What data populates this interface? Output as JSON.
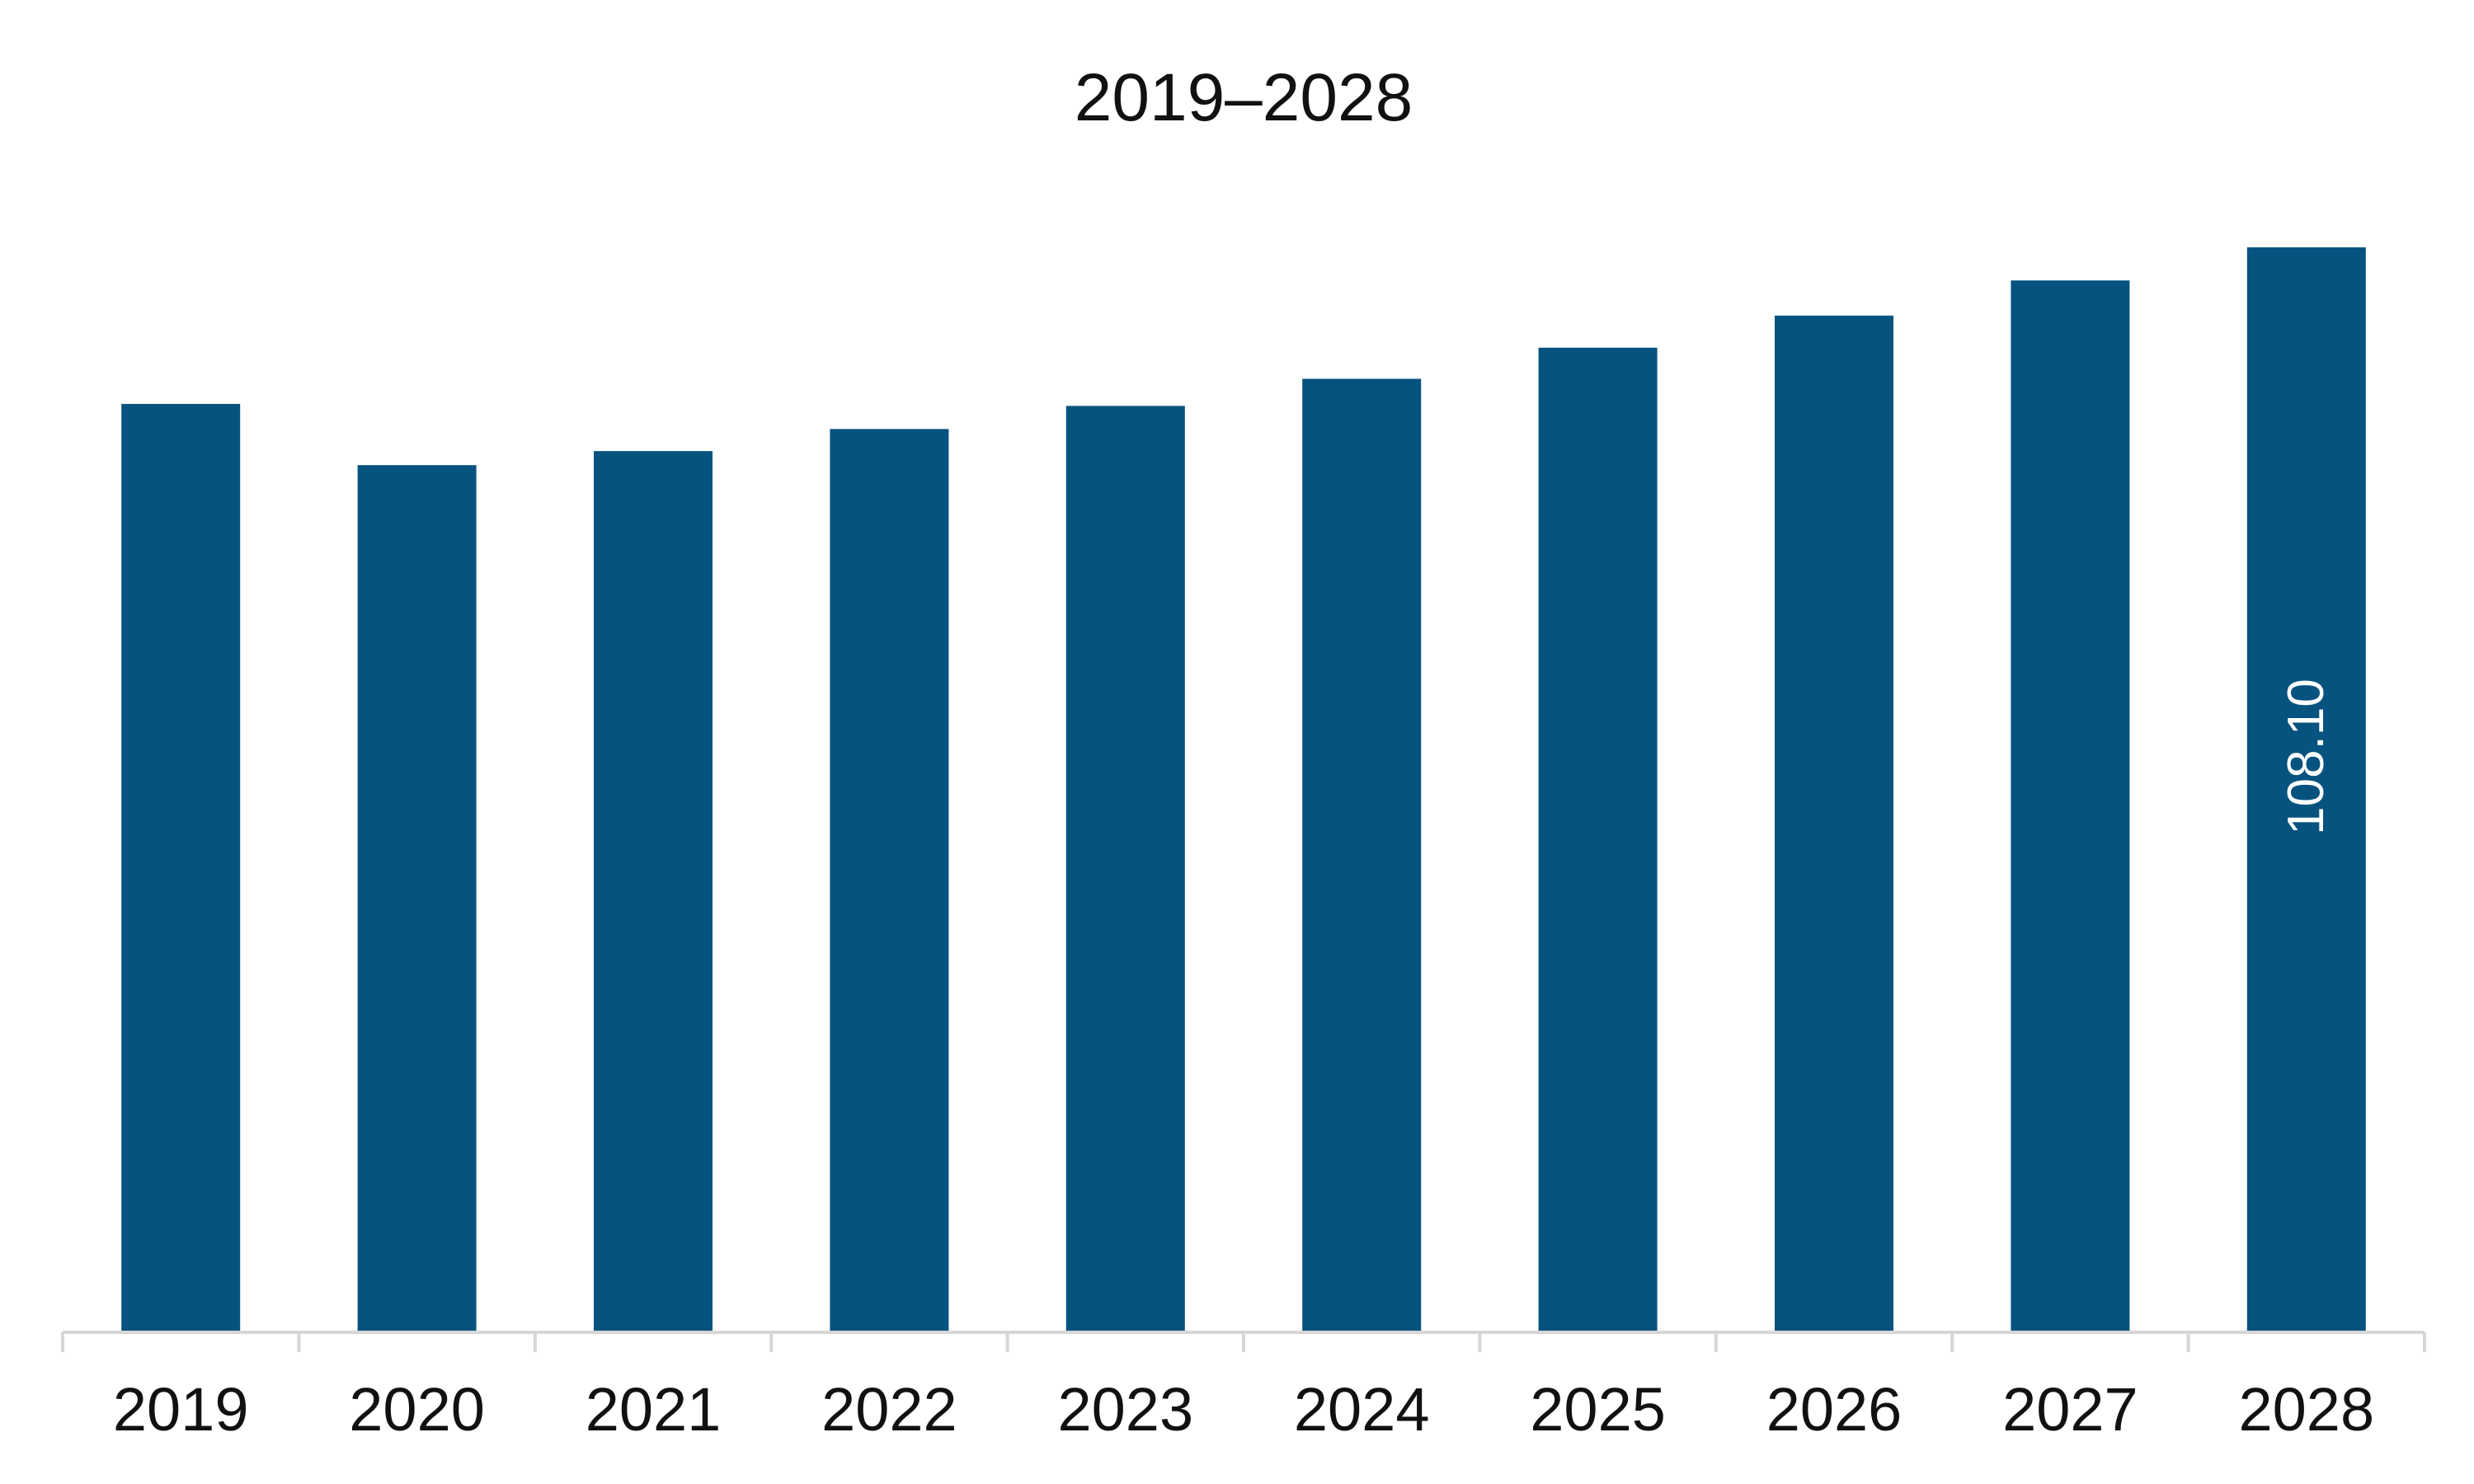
{
  "chart_data": {
    "type": "bar",
    "title": "2019–2028",
    "xlabel": "",
    "ylabel": "",
    "categories": [
      "2019",
      "2020",
      "2021",
      "2022",
      "2023",
      "2024",
      "2025",
      "2026",
      "2027",
      "2028"
    ],
    "values": [
      92.5,
      86.4,
      87.8,
      90.0,
      92.3,
      95.0,
      98.1,
      101.3,
      104.8,
      108.1
    ],
    "data_labels": [
      "",
      "",
      "",
      "",
      "",
      "",
      "",
      "",
      "",
      "108.10"
    ],
    "ylim": [
      0,
      115
    ],
    "grid": false,
    "legend": "none",
    "colors": {
      "bar": "#07537f",
      "axis": "#d6d6d6",
      "text": "#111111",
      "data_label": "#ffffff"
    }
  }
}
